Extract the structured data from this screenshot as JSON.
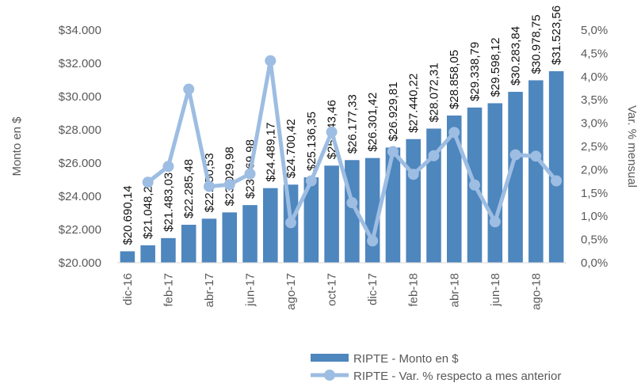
{
  "chart_data": {
    "type": "bar-line",
    "categories": [
      "dic-16",
      null,
      "feb-17",
      null,
      "abr-17",
      null,
      "jun-17",
      null,
      "ago-17",
      null,
      "oct-17",
      null,
      "dic-17",
      null,
      "feb-18",
      null,
      "abr-18",
      null,
      "jun-18",
      null,
      "ago-18",
      null
    ],
    "ylabel": "Monto en $",
    "y2label": "Var. % mensual",
    "ylim": [
      20000,
      34000
    ],
    "yticks": [
      {
        "value": 20000,
        "label": "$20.000"
      },
      {
        "value": 22000,
        "label": "$22.000"
      },
      {
        "value": 24000,
        "label": "$24.000"
      },
      {
        "value": 26000,
        "label": "$26.000"
      },
      {
        "value": 28000,
        "label": "$28.000"
      },
      {
        "value": 30000,
        "label": "$30.000"
      },
      {
        "value": 32000,
        "label": "$32.000"
      },
      {
        "value": 34000,
        "label": "$34.000"
      }
    ],
    "y2lim": [
      0,
      5
    ],
    "y2ticks": [
      {
        "value": 0,
        "label": "0,0%"
      },
      {
        "value": 0.5,
        "label": "0,5%"
      },
      {
        "value": 1,
        "label": "1,0%"
      },
      {
        "value": 1.5,
        "label": "1,5%"
      },
      {
        "value": 2,
        "label": "2,0%"
      },
      {
        "value": 2.5,
        "label": "2,5%"
      },
      {
        "value": 3,
        "label": "3,0%"
      },
      {
        "value": 3.5,
        "label": "3,5%"
      },
      {
        "value": 4,
        "label": "4,0%"
      },
      {
        "value": 4.5,
        "label": "4,5%"
      },
      {
        "value": 5,
        "label": "5,0%"
      }
    ],
    "series": [
      {
        "name": "RIPTE - Monto en $",
        "type": "bar",
        "color": "#4e86be",
        "values": [
          20690.14,
          21048.21,
          21483.03,
          22285.48,
          22650.53,
          23029.98,
          23469.98,
          24489.17,
          24700.42,
          25136.35,
          25843.46,
          26177.33,
          26301.42,
          26929.81,
          27440.22,
          28072.31,
          28858.05,
          29338.79,
          29598.12,
          30283.84,
          30978.75,
          31523.56
        ],
        "value_labels": [
          "$20.690,14",
          "$21.048,21",
          "$21.483,03",
          "$22.285,48",
          "$22.650,53",
          "$23.029,98",
          "$23.469,98",
          "$24.489,17",
          "$24.700,42",
          "$25.136,35",
          "$25.843,46",
          "$26.177,33",
          "$26.301,42",
          "$26.929,81",
          "$27.440,22",
          "$28.072,31",
          "$28.858,05",
          "$29.338,79",
          "$29.598,12",
          "$30.283,84",
          "$30.978,75",
          "$31.523,56"
        ]
      },
      {
        "name": "RIPTE - Var. % respecto a mes anterior",
        "type": "line",
        "axis": "y2",
        "color": "#9dbde2",
        "values": [
          null,
          1.73,
          2.07,
          3.73,
          1.64,
          1.68,
          1.91,
          4.34,
          0.86,
          1.76,
          2.81,
          1.29,
          0.47,
          2.39,
          1.9,
          2.3,
          2.8,
          1.67,
          0.88,
          2.32,
          2.29,
          1.76
        ]
      }
    ]
  }
}
